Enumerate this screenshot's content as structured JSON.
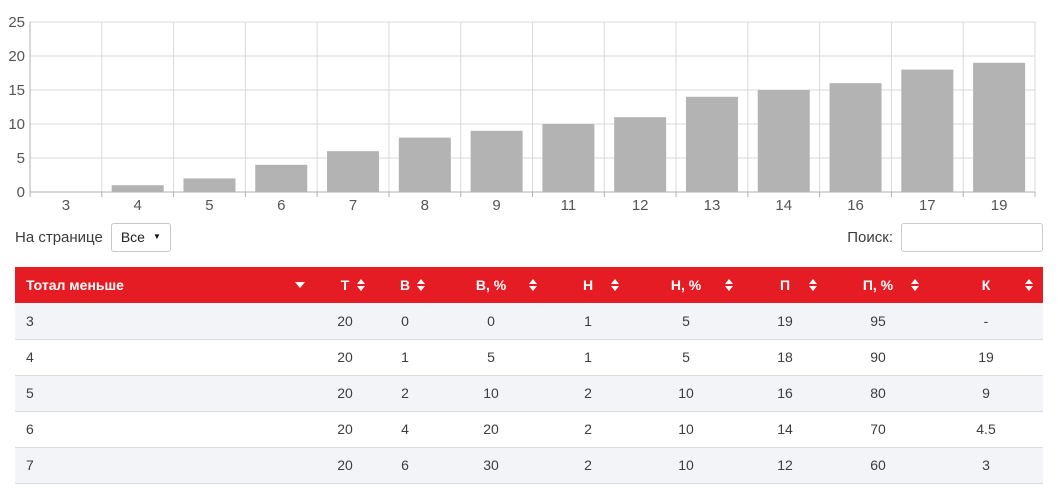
{
  "colors": {
    "header_red": "#e51c23",
    "bar_gray": "#b3b3b3",
    "grid_line": "#d9d9d9",
    "axis_line": "#b0b0b0",
    "row_stripe": "#f3f4f8"
  },
  "chart_data": {
    "type": "bar",
    "title": "",
    "xlabel": "",
    "ylabel": "",
    "categories": [
      "3",
      "4",
      "5",
      "6",
      "7",
      "8",
      "9",
      "11",
      "12",
      "13",
      "14",
      "16",
      "17",
      "19"
    ],
    "values": [
      0,
      1,
      2,
      4,
      6,
      8,
      9,
      10,
      11,
      14,
      15,
      16,
      18,
      19
    ],
    "ylim": [
      0,
      25
    ],
    "yticks": [
      0,
      5,
      10,
      15,
      20,
      25
    ],
    "grid": true,
    "legend": "none",
    "bar_color": "#b3b3b3"
  },
  "controls": {
    "page_size_label": "На странице",
    "page_size_value": "Все",
    "search_label": "Поиск:",
    "search_value": "",
    "search_placeholder": ""
  },
  "table": {
    "columns": [
      {
        "label": "Тотал меньше",
        "sort": "desc"
      },
      {
        "label": "Т",
        "sort": "both"
      },
      {
        "label": "В",
        "sort": "both"
      },
      {
        "label": "В, %",
        "sort": "both"
      },
      {
        "label": "Н",
        "sort": "both"
      },
      {
        "label": "Н, %",
        "sort": "both"
      },
      {
        "label": "П",
        "sort": "both"
      },
      {
        "label": "П, %",
        "sort": "both"
      },
      {
        "label": "К",
        "sort": "both"
      }
    ],
    "rows": [
      [
        "3",
        "20",
        "0",
        "0",
        "1",
        "5",
        "19",
        "95",
        "-"
      ],
      [
        "4",
        "20",
        "1",
        "5",
        "1",
        "5",
        "18",
        "90",
        "19"
      ],
      [
        "5",
        "20",
        "2",
        "10",
        "2",
        "10",
        "16",
        "80",
        "9"
      ],
      [
        "6",
        "20",
        "4",
        "20",
        "2",
        "10",
        "14",
        "70",
        "4.5"
      ],
      [
        "7",
        "20",
        "6",
        "30",
        "2",
        "10",
        "12",
        "60",
        "3"
      ]
    ]
  }
}
